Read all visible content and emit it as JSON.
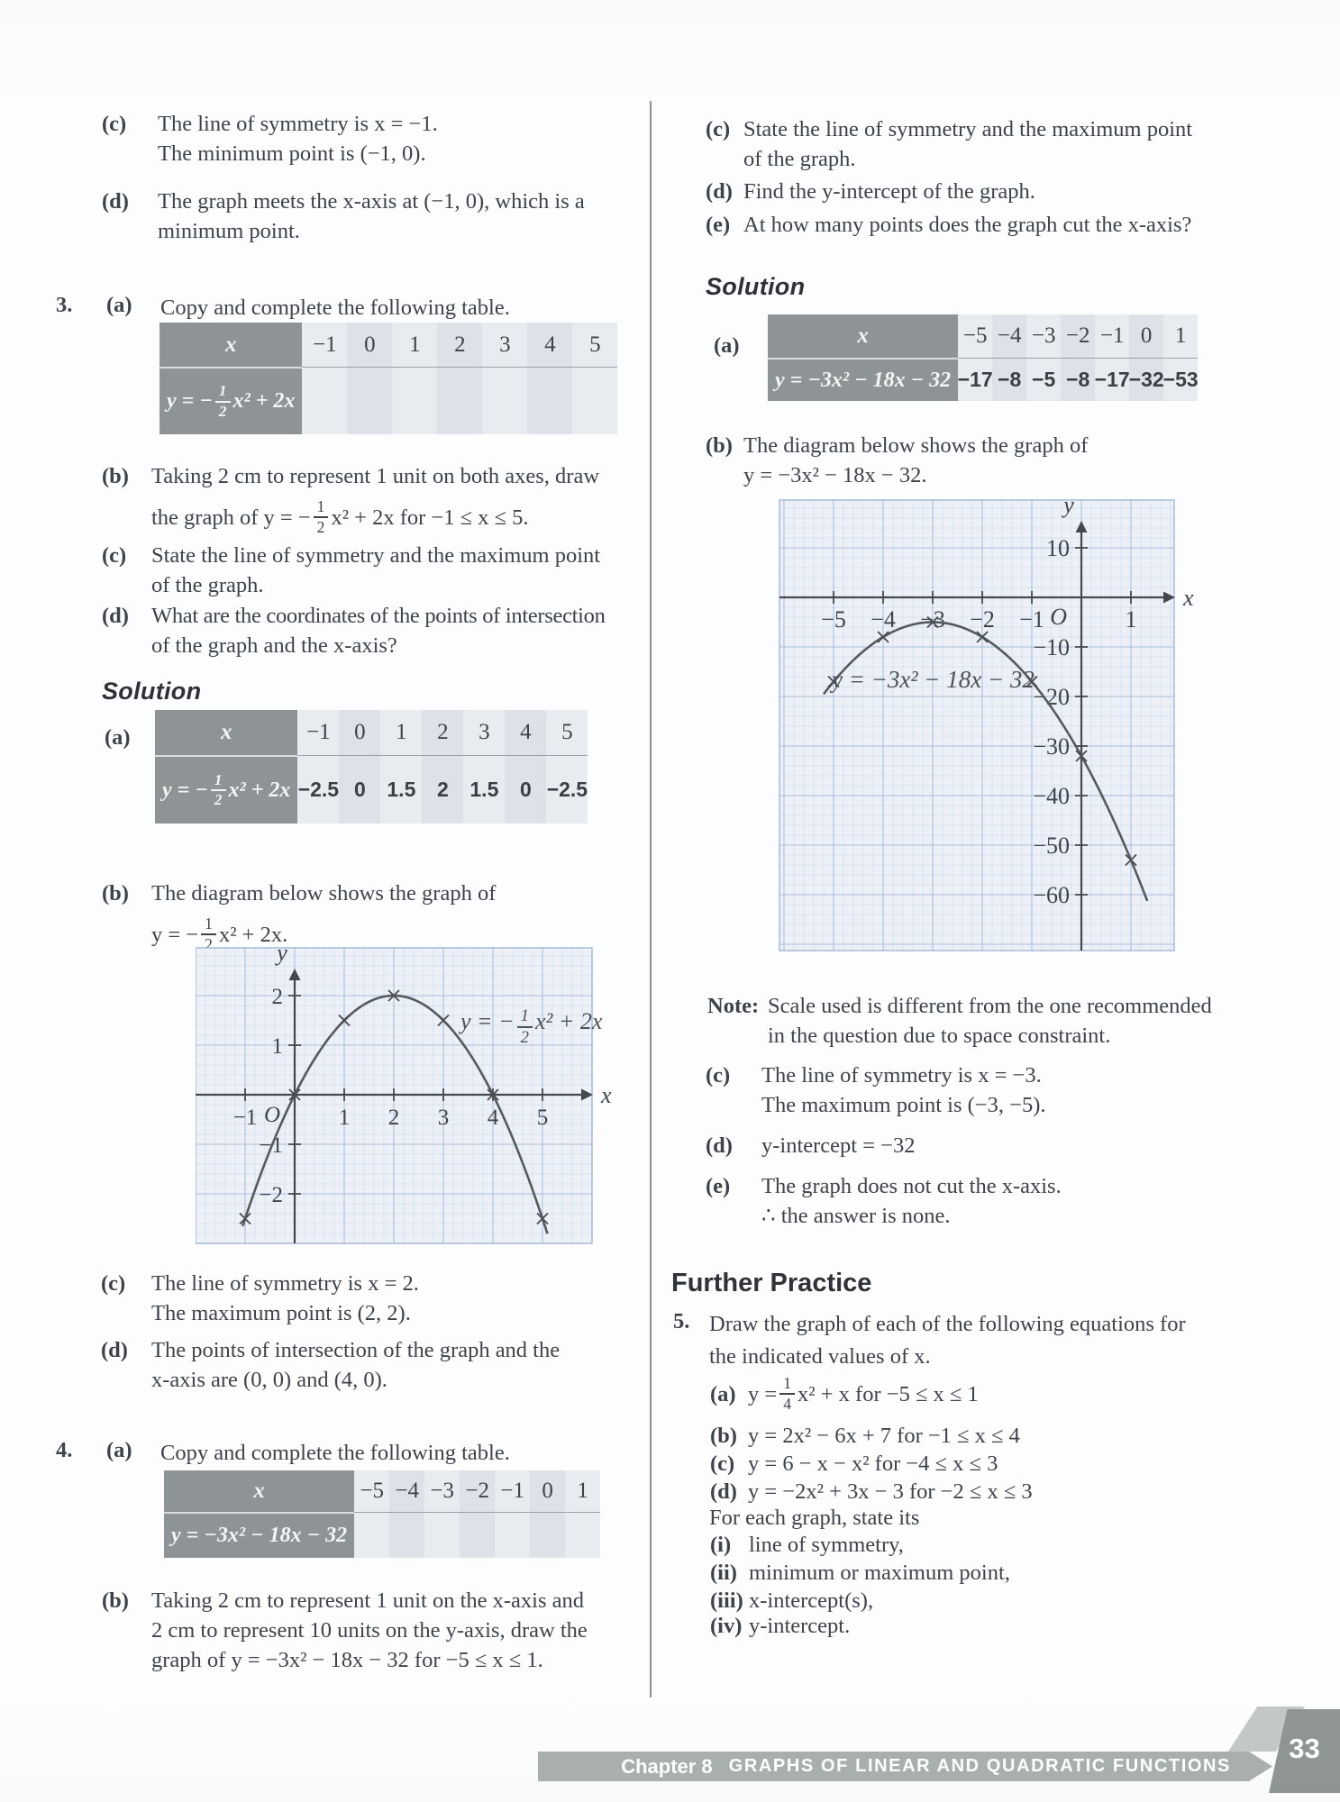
{
  "left": {
    "c_top": {
      "label": "(c)",
      "lines": [
        "The line of symmetry is x = −1.",
        "The minimum point is (−1, 0)."
      ]
    },
    "d_top": {
      "label": "(d)",
      "lines": [
        "The graph meets the x-axis at (−1, 0), which is a",
        "minimum point."
      ]
    },
    "q3": {
      "number": "3.",
      "a_label": "(a)",
      "a_text": "Copy and complete the following table."
    },
    "q3b": {
      "label": "(b)",
      "line1": "Taking 2 cm to represent 1 unit on both axes, draw",
      "l2_pre": "the graph of y = −",
      "frac_num": "1",
      "frac_den": "2",
      "l2_post": "x² + 2x for −1 ≤ x ≤ 5."
    },
    "q3c": {
      "label": "(c)",
      "lines": [
        "State the line of symmetry and the maximum point",
        "of the graph."
      ]
    },
    "q3d": {
      "label": "(d)",
      "lines": [
        "What are the coordinates of the points of intersection",
        "of the graph and the x-axis?"
      ]
    },
    "solution_label": "Solution",
    "sol_a_label": "(a)",
    "sol_b": {
      "label": "(b)",
      "line1": "The diagram below shows the graph of",
      "l2_pre": "y = −",
      "frac_num": "1",
      "frac_den": "2",
      "l2_post": "x² + 2x."
    },
    "sol_c": {
      "label": "(c)",
      "lines": [
        "The line of symmetry is x = 2.",
        "The maximum point is (2, 2)."
      ]
    },
    "sol_d": {
      "label": "(d)",
      "lines": [
        "The points of intersection of the graph and the",
        "x-axis are (0, 0) and (4, 0)."
      ]
    },
    "q4": {
      "number": "4.",
      "a_label": "(a)",
      "a_text": "Copy and complete the following table."
    },
    "q4b": {
      "label": "(b)",
      "lines": [
        "Taking 2 cm to represent 1 unit on the x-axis and",
        "2 cm to represent 10 units on the y-axis, draw the",
        "graph of y = −3x² − 18x − 32 for −5 ≤ x ≤ 1."
      ]
    }
  },
  "right": {
    "c": {
      "label": "(c)",
      "lines": [
        "State the line of symmetry and the maximum point",
        "of the graph."
      ]
    },
    "d": {
      "label": "(d)",
      "lines": [
        "Find the y-intercept of the graph."
      ]
    },
    "e": {
      "label": "(e)",
      "lines": [
        "At how many points does the graph cut the x-axis?"
      ]
    },
    "solution_label": "Solution",
    "sol_a_label": "(a)",
    "sol_b": {
      "label": "(b)",
      "lines": [
        "The diagram below shows the graph of",
        "y = −3x² − 18x − 32."
      ]
    },
    "note": {
      "label": "Note:",
      "lines": [
        "Scale used is different from the one recommended",
        "in the question due to space constraint."
      ]
    },
    "sol_c": {
      "label": "(c)",
      "lines": [
        "The line of symmetry is x = −3.",
        "The maximum point is (−3, −5)."
      ]
    },
    "sol_d": {
      "label": "(d)",
      "lines": [
        "y-intercept = −32"
      ]
    },
    "sol_e": {
      "label": "(e)",
      "lines": [
        "The graph does not cut the x-axis.",
        "∴ the answer is none."
      ]
    },
    "further_practice": "Further Practice",
    "q5": {
      "number": "5.",
      "lines": [
        "Draw the graph of each of the following equations for",
        "the indicated values of x."
      ]
    },
    "q5a": {
      "label": "(a)",
      "pre": "y = ",
      "frac_num": "1",
      "frac_den": "4",
      "post": "x² + x for −5 ≤ x ≤ 1"
    },
    "q5b": {
      "label": "(b)",
      "text": "y = 2x² − 6x + 7 for −1 ≤ x ≤ 4"
    },
    "q5c": {
      "label": "(c)",
      "text": "y = 6 − x − x² for −4 ≤ x ≤ 3"
    },
    "q5d": {
      "label": "(d)",
      "text": "y = −2x² + 3x − 3 for −2 ≤ x ≤ 3"
    },
    "q5_state": "For each graph, state its",
    "q5i": {
      "label": "(i)",
      "text": "line of symmetry,"
    },
    "q5ii": {
      "label": "(ii)",
      "text": "minimum or maximum point,"
    },
    "q5iii": {
      "label": "(iii)",
      "text": "x-intercept(s),"
    },
    "q5iv": {
      "label": "(iv)",
      "text": "y-intercept."
    }
  },
  "tables": {
    "q3_blank": {
      "x_label": "x",
      "eq": {
        "pre": "y = −",
        "num": "1",
        "den": "2",
        "post": "x² + 2x"
      },
      "x_values": [
        "−1",
        "0",
        "1",
        "2",
        "3",
        "4",
        "5"
      ],
      "y_values": [
        "",
        "",
        "",
        "",
        "",
        "",
        ""
      ]
    },
    "q3_filled": {
      "x_label": "x",
      "eq": {
        "pre": "y = −",
        "num": "1",
        "den": "2",
        "post": "x² + 2x"
      },
      "x_values": [
        "−1",
        "0",
        "1",
        "2",
        "3",
        "4",
        "5"
      ],
      "y_values": [
        "−2.5",
        "0",
        "1.5",
        "2",
        "1.5",
        "0",
        "−2.5"
      ]
    },
    "q4_filled": {
      "x_label": "x",
      "eq_text": "y = −3x² − 18x − 32",
      "x_values": [
        "−5",
        "−4",
        "−3",
        "−2",
        "−1",
        "0",
        "1"
      ],
      "y_values": [
        "−17",
        "−8",
        "−5",
        "−8",
        "−17",
        "−32",
        "−53"
      ]
    },
    "q4_blank": {
      "x_label": "x",
      "eq_text": "y = −3x² − 18x − 32",
      "x_values": [
        "−5",
        "−4",
        "−3",
        "−2",
        "−1",
        "0",
        "1"
      ],
      "y_values": [
        "",
        "",
        "",
        "",
        "",
        "",
        ""
      ]
    }
  },
  "chart_data": [
    {
      "id": "q3-graph",
      "type": "line",
      "grid": true,
      "equation": {
        "pre": "y = −",
        "num": "1",
        "den": "2",
        "post": "x² + 2x"
      },
      "coefficients": {
        "a": -0.5,
        "b": 2,
        "c": 0
      },
      "domain": [
        -1,
        5
      ],
      "points_x": [
        -1,
        0,
        1,
        2,
        3,
        4,
        5
      ],
      "points_y": [
        -2.5,
        0,
        1.5,
        2,
        1.5,
        0,
        -2.5
      ],
      "x_ticks": [
        -1,
        1,
        2,
        3,
        4,
        5
      ],
      "x_tick_labels": [
        "−1",
        "1",
        "2",
        "3",
        "4",
        "5"
      ],
      "y_ticks": [
        2,
        1,
        -1,
        -2
      ],
      "y_tick_labels": [
        "2",
        "1",
        "−1",
        "−2"
      ],
      "x_range": [
        -2,
        6
      ],
      "y_range": [
        -3,
        2.96
      ],
      "origin_label": "O",
      "x_axis_label": "x",
      "y_axis_label": "y"
    },
    {
      "id": "q4-graph",
      "type": "line",
      "grid": true,
      "equation_text": "y = −3x² − 18x − 32",
      "coefficients": {
        "a": -3,
        "b": -18,
        "c": -32
      },
      "domain": [
        -5,
        1
      ],
      "points_x": [
        -5,
        -4,
        -3,
        -2,
        -1,
        0,
        1
      ],
      "points_y": [
        -17,
        -8,
        -5,
        -8,
        -17,
        -32,
        -53
      ],
      "x_ticks": [
        -5,
        -4,
        -3,
        -2,
        -1,
        1
      ],
      "x_tick_labels": [
        "−5",
        "−4",
        "−3",
        "−2",
        "−1",
        "1"
      ],
      "y_ticks": [
        10,
        -10,
        -20,
        -30,
        -40,
        -50,
        -60
      ],
      "y_tick_labels": [
        "10",
        "−10",
        "−20",
        "−30",
        "−40",
        "−50",
        "−60"
      ],
      "x_range": [
        -6.1,
        1.87
      ],
      "y_range": [
        -71.3,
        19.6
      ],
      "origin_label": "O",
      "x_axis_label": "x",
      "y_axis_label": "y"
    }
  ],
  "footer": {
    "chapter_label": "Chapter 8",
    "chapter_title": "GRAPHS OF LINEAR AND QUADRATIC FUNCTIONS",
    "page_number": "33"
  }
}
